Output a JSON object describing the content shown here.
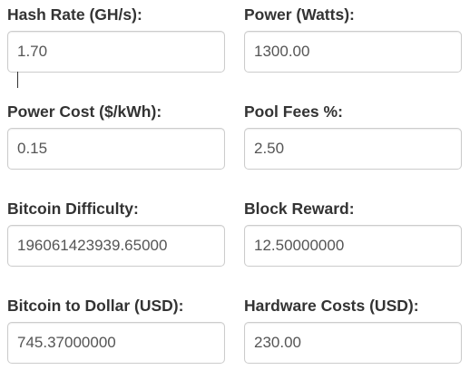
{
  "fields": [
    {
      "label": "Hash Rate (GH/s):",
      "value": "1.70"
    },
    {
      "label": "Power (Watts):",
      "value": "1300.00"
    },
    {
      "label": "Power Cost ($/kWh):",
      "value": "0.15"
    },
    {
      "label": "Pool Fees %:",
      "value": "2.50"
    },
    {
      "label": "Bitcoin Difficulty:",
      "value": "196061423939.65000"
    },
    {
      "label": "Block Reward:",
      "value": "12.50000000"
    },
    {
      "label": "Bitcoin to Dollar (USD):",
      "value": "745.37000000"
    },
    {
      "label": "Hardware Costs (USD):",
      "value": "230.00"
    }
  ]
}
